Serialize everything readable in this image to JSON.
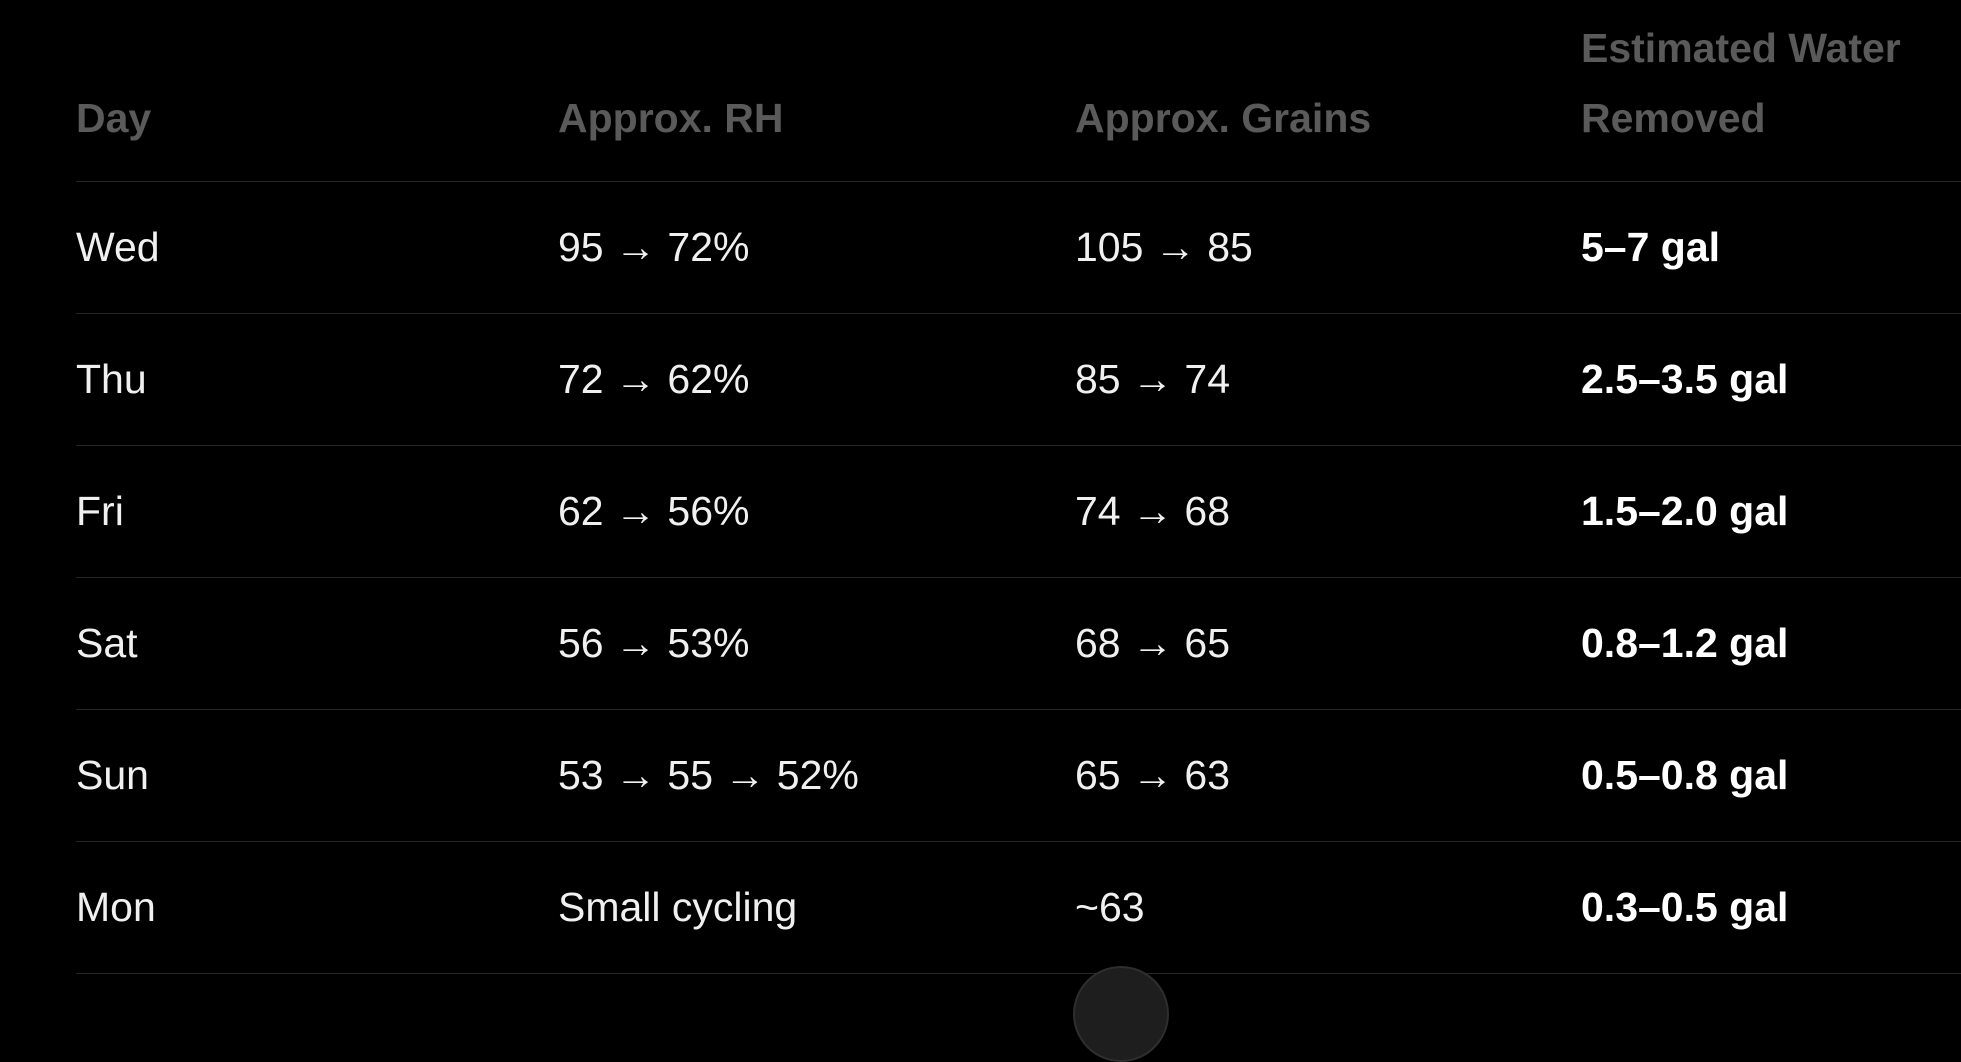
{
  "table": {
    "header": [
      "Day",
      "Approx. RH",
      "Approx. Grains",
      "Estimated Water Removed"
    ],
    "rows": [
      [
        "Wed",
        "95 → 72%",
        "105 → 85",
        "5–7 gal"
      ],
      [
        "Thu",
        "72 → 62%",
        "85 → 74",
        "2.5–3.5 gal"
      ],
      [
        "Fri",
        "62 → 56%",
        "74 → 68",
        "1.5–2.0 gal"
      ],
      [
        "Sat",
        "56 → 53%",
        "68 → 65",
        "0.8–1.2 gal"
      ],
      [
        "Sun",
        "53 → 55 → 52%",
        "65 → 63",
        "0.5–0.8 gal"
      ],
      [
        "Mon",
        "Small cycling",
        "~63",
        "0.3–0.5 gal"
      ]
    ]
  }
}
